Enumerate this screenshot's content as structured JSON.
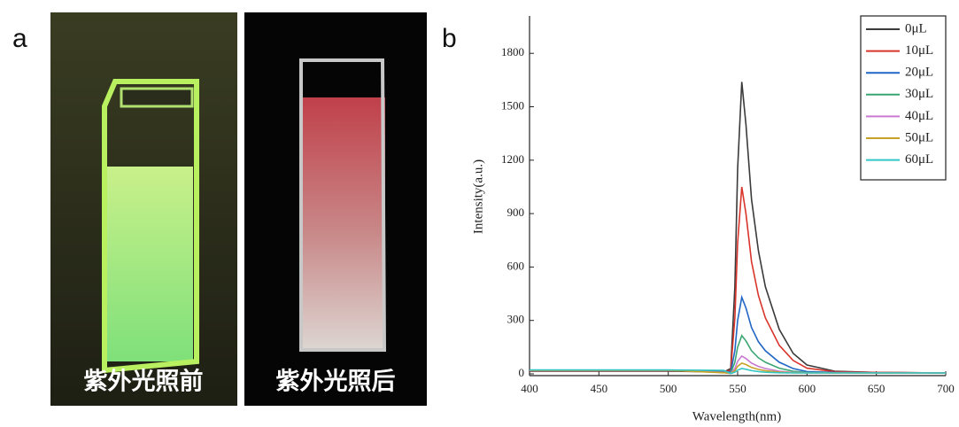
{
  "panels": {
    "a": {
      "label": "a",
      "photos": [
        {
          "caption": "紫外光照前"
        },
        {
          "caption": "紫外光照后"
        }
      ]
    },
    "b": {
      "label": "b"
    }
  },
  "chart_data": {
    "type": "line",
    "x_label": "Wavelength(nm)",
    "y_label": "Intensity(a.u.)",
    "x": [
      400,
      450,
      500,
      540,
      545,
      548,
      550,
      553,
      556,
      560,
      565,
      570,
      580,
      590,
      600,
      620,
      650,
      700
    ],
    "series": [
      {
        "name": "0μL",
        "color": "#3a3a3a",
        "values": [
          15,
          15,
          15,
          10,
          30,
          490,
          1150,
          1640,
          1400,
          980,
          690,
          490,
          250,
          115,
          50,
          15,
          8,
          5
        ]
      },
      {
        "name": "10μL",
        "color": "#d9342b",
        "values": [
          18,
          18,
          18,
          12,
          20,
          315,
          735,
          1050,
          900,
          630,
          440,
          315,
          160,
          75,
          32,
          12,
          8,
          5
        ]
      },
      {
        "name": "20μL",
        "color": "#2166c4",
        "values": [
          20,
          20,
          20,
          12,
          10,
          130,
          300,
          430,
          370,
          260,
          180,
          130,
          65,
          30,
          13,
          8,
          6,
          5
        ]
      },
      {
        "name": "30μL",
        "color": "#3aa672",
        "values": [
          20,
          20,
          20,
          10,
          5,
          65,
          150,
          215,
          185,
          130,
          90,
          65,
          32,
          15,
          8,
          6,
          5,
          5
        ]
      },
      {
        "name": "40μL",
        "color": "#c77ad0",
        "values": [
          20,
          20,
          20,
          8,
          3,
          30,
          70,
          100,
          86,
          60,
          42,
          30,
          15,
          8,
          6,
          5,
          5,
          5
        ]
      },
      {
        "name": "50μL",
        "color": "#c6a227",
        "values": [
          20,
          20,
          20,
          6,
          2,
          18,
          42,
          60,
          52,
          36,
          25,
          18,
          10,
          6,
          5,
          5,
          5,
          5
        ]
      },
      {
        "name": "60μL",
        "color": "#33c6c6",
        "values": [
          22,
          22,
          22,
          20,
          2,
          9,
          21,
          30,
          26,
          18,
          13,
          9,
          6,
          5,
          5,
          5,
          5,
          5
        ]
      }
    ],
    "xlim": [
      400,
      700
    ],
    "xticks": [
      400,
      450,
      500,
      550,
      600,
      650,
      700
    ],
    "ylim": [
      0,
      2010
    ],
    "yticks": [
      0,
      300,
      600,
      900,
      1200,
      1500,
      1800
    ],
    "legend": "upper right"
  }
}
